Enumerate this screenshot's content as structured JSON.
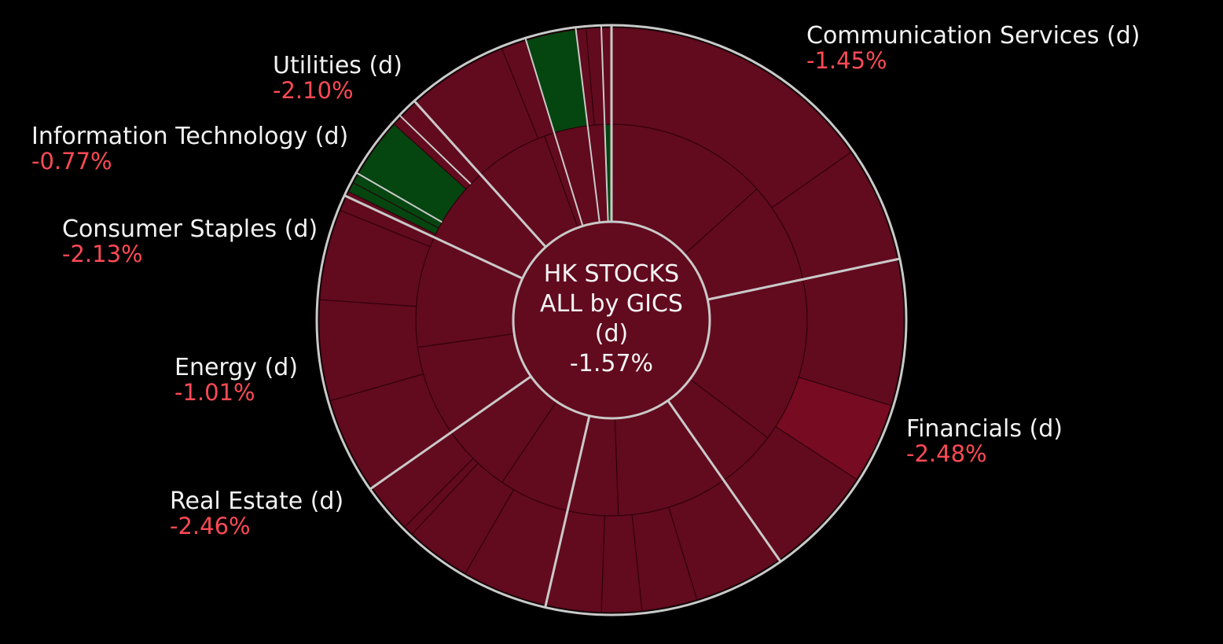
{
  "chart_data": {
    "type": "sunburst",
    "title": "HK STOCKS ALL by GICS (d)",
    "center": {
      "line1": "HK STOCKS",
      "line2": "ALL by GICS",
      "line3": "(d)",
      "value": "-1.57%"
    },
    "colors": {
      "negative": "#620a1e",
      "negative_strong": "#760b22",
      "positive": "#044510",
      "separator": "#c9c9c9",
      "label_value": "#ff4a55"
    },
    "sectors": [
      {
        "name": "Communication Services (d)",
        "change": "-1.45%",
        "start": 0,
        "end": 78
      },
      {
        "name": "Financials (d)",
        "change": "-2.48%",
        "start": 78,
        "end": 145
      },
      {
        "name": "Real Estate (d)",
        "change": "-2.46%",
        "start": 145,
        "end": 193
      },
      {
        "name": "Energy (d)",
        "change": "-1.01%",
        "start": 193,
        "end": 235
      },
      {
        "name": "Consumer Staples (d)",
        "change": "-2.13%",
        "start": 235,
        "end": 295
      },
      {
        "name": "Information Technology (d)",
        "change": "-0.77%",
        "start": 295,
        "end": 318
      },
      {
        "name": "Utilities (d)",
        "change": "-2.10%",
        "start": 318,
        "end": 358
      }
    ],
    "inner_ring": [
      {
        "start": 0,
        "end": 48,
        "color": "negative"
      },
      {
        "start": 48,
        "end": 78,
        "color": "negative"
      },
      {
        "start": 78,
        "end": 127,
        "color": "negative"
      },
      {
        "start": 127,
        "end": 145,
        "color": "negative"
      },
      {
        "start": 145,
        "end": 178,
        "color": "negative"
      },
      {
        "start": 178,
        "end": 193,
        "color": "negative"
      },
      {
        "start": 193,
        "end": 214,
        "color": "negative"
      },
      {
        "start": 214,
        "end": 235,
        "color": "negative"
      },
      {
        "start": 235,
        "end": 262,
        "color": "negative"
      },
      {
        "start": 262,
        "end": 295,
        "color": "negative"
      },
      {
        "start": 295,
        "end": 318,
        "color": "negative"
      },
      {
        "start": 318,
        "end": 340,
        "color": "negative"
      },
      {
        "start": 340,
        "end": 358,
        "color": "negative"
      },
      {
        "start": 358,
        "end": 360,
        "color": "positive"
      }
    ],
    "outer_ring": [
      {
        "start": 0,
        "end": 55,
        "color": "negative"
      },
      {
        "start": 55,
        "end": 78,
        "color": "negative"
      },
      {
        "start": 78,
        "end": 107,
        "color": "negative"
      },
      {
        "start": 107,
        "end": 123,
        "color": "negative_strong"
      },
      {
        "start": 123,
        "end": 145,
        "color": "negative"
      },
      {
        "start": 145,
        "end": 163,
        "color": "negative"
      },
      {
        "start": 163,
        "end": 174,
        "color": "negative"
      },
      {
        "start": 174,
        "end": 182,
        "color": "negative"
      },
      {
        "start": 182,
        "end": 193,
        "color": "negative"
      },
      {
        "start": 193,
        "end": 210,
        "color": "negative"
      },
      {
        "start": 210,
        "end": 223,
        "color": "negative"
      },
      {
        "start": 223,
        "end": 225,
        "color": "negative"
      },
      {
        "start": 225,
        "end": 235,
        "color": "negative"
      },
      {
        "start": 235,
        "end": 254,
        "color": "negative"
      },
      {
        "start": 254,
        "end": 274,
        "color": "negative"
      },
      {
        "start": 274,
        "end": 292,
        "color": "negative"
      },
      {
        "start": 292,
        "end": 296,
        "color": "negative"
      },
      {
        "start": 296,
        "end": 298,
        "color": "positive"
      },
      {
        "start": 298,
        "end": 312,
        "color": "positive"
      },
      {
        "start": 312,
        "end": 318,
        "color": "negative"
      },
      {
        "start": 318,
        "end": 338,
        "color": "negative"
      },
      {
        "start": 338,
        "end": 343,
        "color": "negative"
      },
      {
        "start": 343,
        "end": 353,
        "color": "positive"
      },
      {
        "start": 353,
        "end": 355,
        "color": "negative"
      },
      {
        "start": 355,
        "end": 360,
        "color": "negative"
      }
    ]
  }
}
